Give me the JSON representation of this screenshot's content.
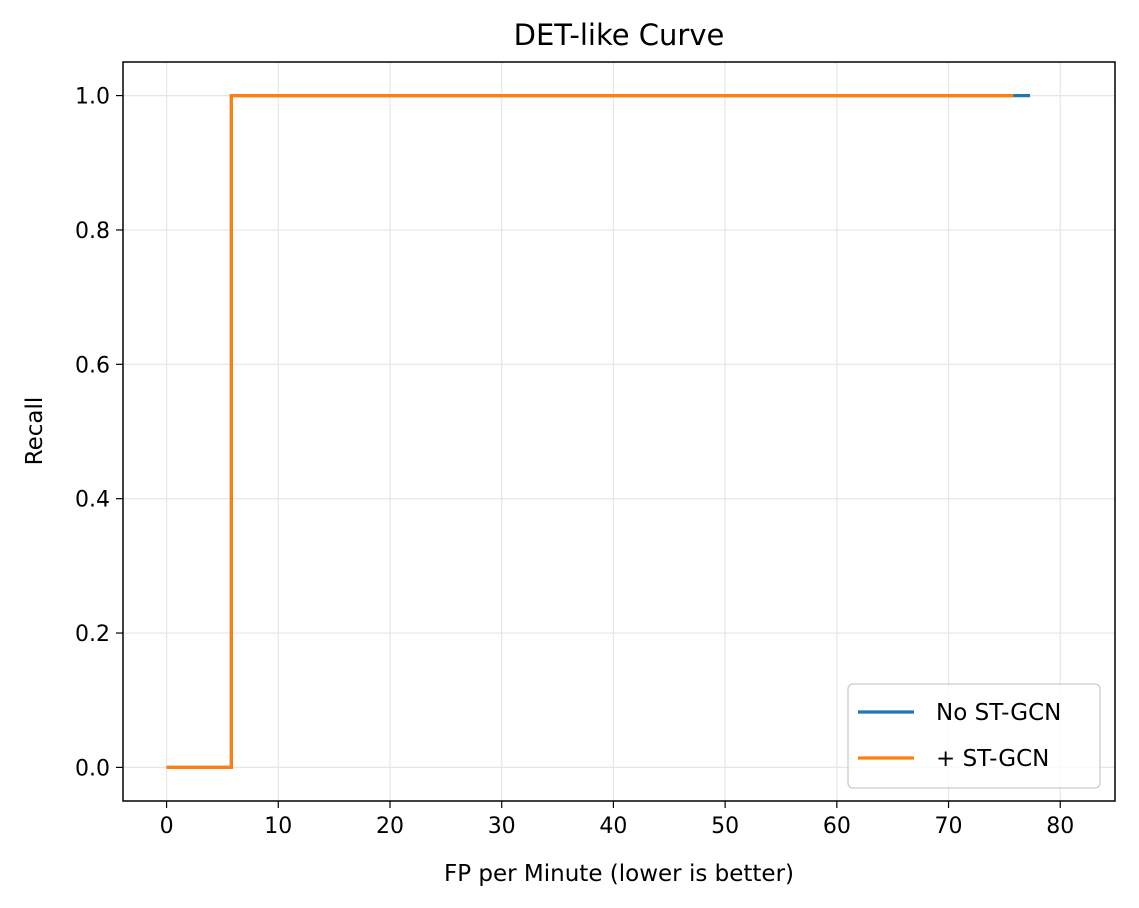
{
  "chart_data": {
    "type": "line",
    "title": "DET-like Curve",
    "xlabel": "FP per Minute (lower is better)",
    "ylabel": "Recall",
    "xlim": [
      -3.9,
      84.9
    ],
    "ylim": [
      -0.05,
      1.05
    ],
    "xticks": [
      0,
      10,
      20,
      30,
      40,
      50,
      60,
      70,
      80
    ],
    "yticks": [
      0.0,
      0.2,
      0.4,
      0.6,
      0.8,
      1.0
    ],
    "xtick_labels": [
      "0",
      "10",
      "20",
      "30",
      "40",
      "50",
      "60",
      "70",
      "80"
    ],
    "ytick_labels": [
      "0.0",
      "0.2",
      "0.4",
      "0.6",
      "0.8",
      "1.0"
    ],
    "grid": true,
    "legend_position": "lower-right",
    "series": [
      {
        "name": "No ST-GCN",
        "color": "#1f77b4",
        "x": [
          0,
          5.8,
          5.8,
          77.3
        ],
        "y": [
          0.0,
          0.0,
          1.0,
          1.0
        ]
      },
      {
        "name": "+ ST-GCN",
        "color": "#ff7f0e",
        "x": [
          0,
          5.8,
          5.8,
          75.8
        ],
        "y": [
          0.0,
          0.0,
          1.0,
          1.0
        ]
      }
    ]
  }
}
